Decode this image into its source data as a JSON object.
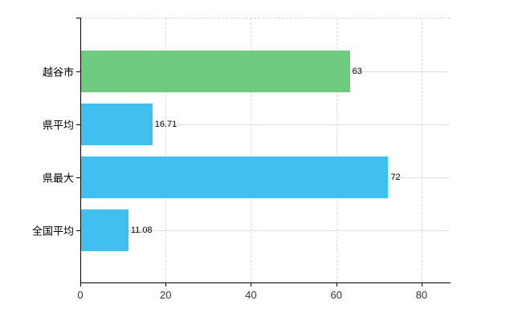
{
  "chart_data": {
    "type": "bar",
    "orientation": "horizontal",
    "categories": [
      "越谷市",
      "県平均",
      "県最大",
      "全国平均"
    ],
    "values": [
      63,
      16.71,
      72,
      11.08
    ],
    "value_labels": [
      "63",
      "16.71",
      "72",
      "11.08"
    ],
    "bar_colors": [
      "#6ecb80",
      "#41bfef",
      "#41bfef",
      "#41bfef"
    ],
    "x_ticks": [
      0,
      20,
      40,
      60,
      80
    ],
    "x_tick_labels": [
      "0",
      "20",
      "40",
      "60",
      "80"
    ],
    "xlim": [
      0,
      86.6
    ],
    "grid": {
      "vertical": "dashed at each x tick",
      "horizontal": "solid at category centers",
      "top_border": "dashed"
    },
    "legend": "none",
    "title": ""
  },
  "colors": {
    "background": "#ffffff",
    "axis": "#000000",
    "gridline": "#d9d9d9",
    "bar_green": "#6ecb80",
    "bar_blue": "#41bfef",
    "label_text": "#000000",
    "tick_text": "#333333"
  }
}
